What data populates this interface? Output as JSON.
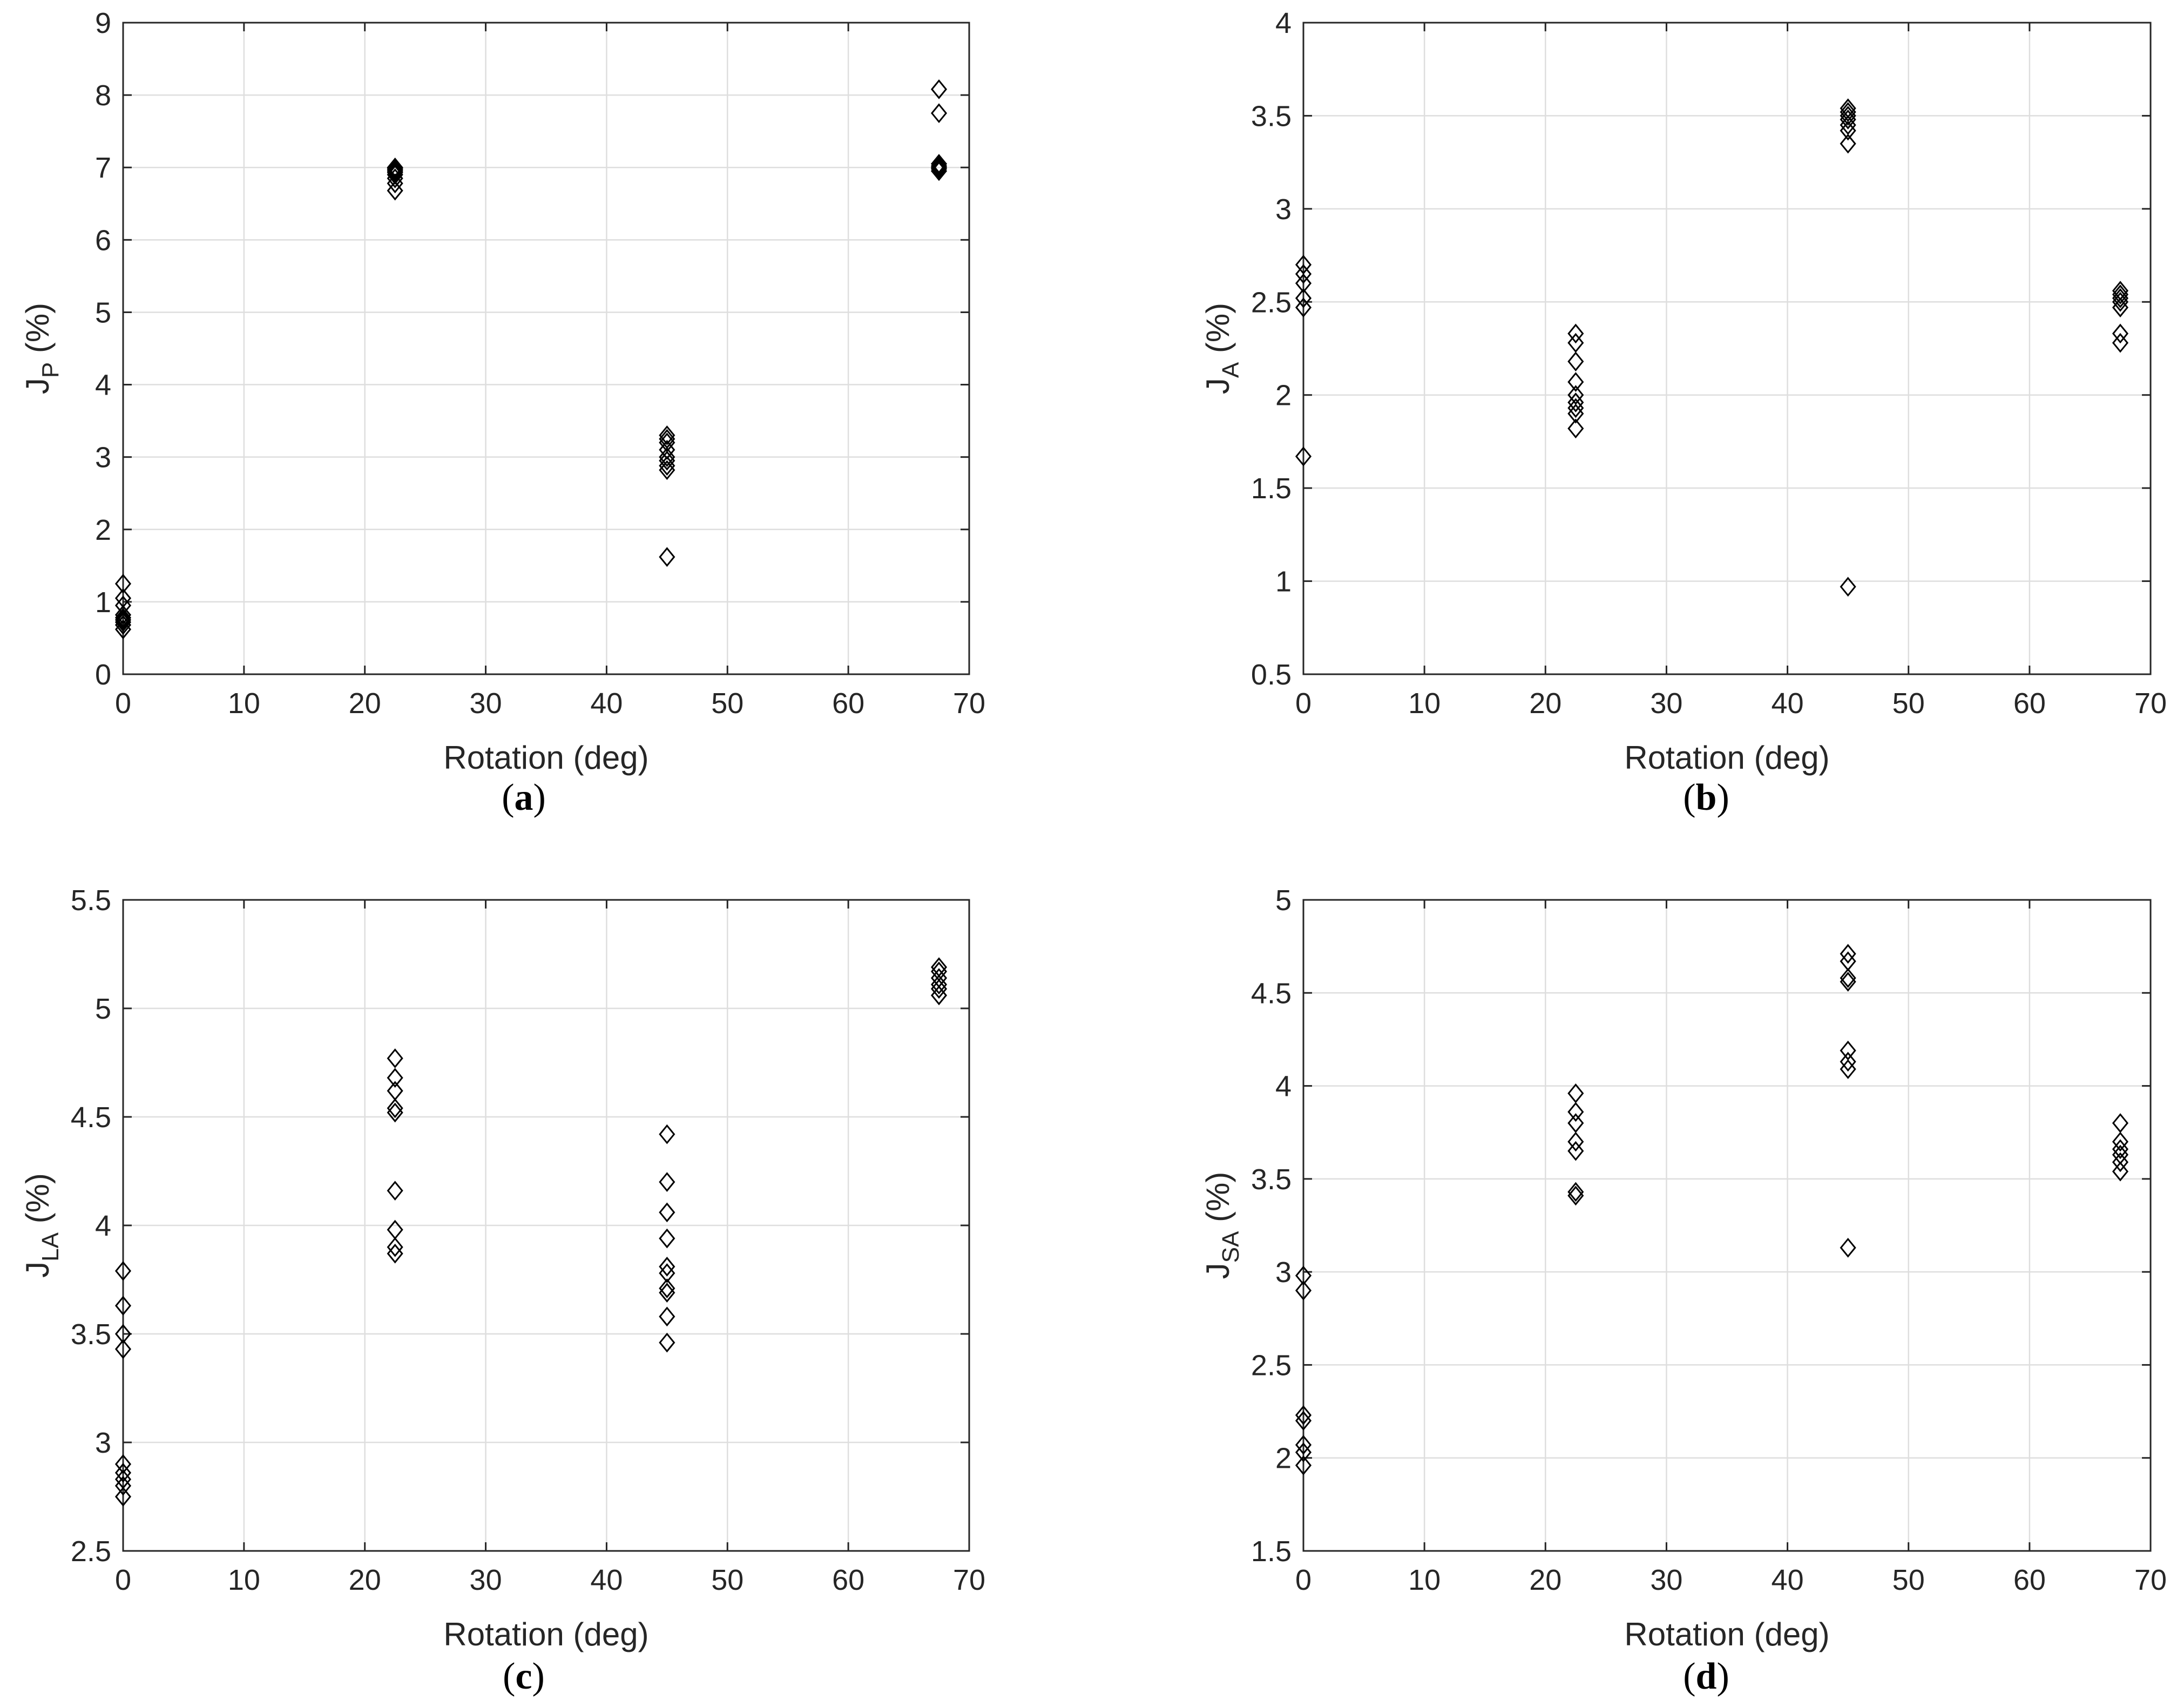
{
  "chart_data": [
    {
      "type": "scatter",
      "panel_label": "a",
      "marker": "diamond",
      "xlabel": "Rotation (deg)",
      "ylabel_main": "J",
      "ylabel_sub": "P",
      "ylabel_unit": "(%)",
      "xlim": [
        0,
        70
      ],
      "ylim": [
        0,
        9
      ],
      "xticks": [
        "0",
        "10",
        "20",
        "30",
        "40",
        "50",
        "60",
        "70"
      ],
      "yticks": [
        "0",
        "1",
        "2",
        "3",
        "4",
        "5",
        "6",
        "7",
        "8",
        "9"
      ],
      "grid": true,
      "series": [
        {
          "x": 0,
          "values": [
            0.62,
            0.68,
            0.72,
            0.75,
            0.78,
            0.82,
            0.95,
            1.05,
            1.25
          ]
        },
        {
          "x": 22.5,
          "values": [
            6.68,
            6.78,
            6.85,
            6.9,
            6.93,
            6.95,
            6.97,
            6.99,
            7.0
          ]
        },
        {
          "x": 45,
          "values": [
            1.62,
            2.82,
            2.88,
            2.95,
            3.0,
            3.1,
            3.2,
            3.25,
            3.3
          ]
        },
        {
          "x": 67.5,
          "values": [
            6.95,
            6.98,
            7.0,
            7.02,
            7.05,
            7.75,
            8.08
          ]
        }
      ]
    },
    {
      "type": "scatter",
      "panel_label": "b",
      "marker": "diamond",
      "xlabel": "Rotation (deg)",
      "ylabel_main": "J",
      "ylabel_sub": "A",
      "ylabel_unit": "(%)",
      "xlim": [
        0,
        70
      ],
      "ylim": [
        0.5,
        4
      ],
      "xticks": [
        "0",
        "10",
        "20",
        "30",
        "40",
        "50",
        "60",
        "70"
      ],
      "yticks": [
        "0.5",
        "1",
        "1.5",
        "2",
        "2.5",
        "3",
        "3.5",
        "4"
      ],
      "grid": true,
      "series": [
        {
          "x": 0,
          "values": [
            1.67,
            2.47,
            2.52,
            2.6,
            2.65,
            2.7
          ]
        },
        {
          "x": 22.5,
          "values": [
            1.82,
            1.9,
            1.93,
            1.96,
            2.0,
            2.07,
            2.18,
            2.28,
            2.33
          ]
        },
        {
          "x": 45,
          "values": [
            0.97,
            3.35,
            3.42,
            3.45,
            3.48,
            3.5,
            3.52,
            3.54
          ]
        },
        {
          "x": 67.5,
          "values": [
            2.28,
            2.33,
            2.47,
            2.5,
            2.52,
            2.54,
            2.56
          ]
        }
      ]
    },
    {
      "type": "scatter",
      "panel_label": "c",
      "marker": "diamond",
      "xlabel": "Rotation (deg)",
      "ylabel_main": "J",
      "ylabel_sub": "LA",
      "ylabel_unit": "(%)",
      "xlim": [
        0,
        70
      ],
      "ylim": [
        2.5,
        5.5
      ],
      "xticks": [
        "0",
        "10",
        "20",
        "30",
        "40",
        "50",
        "60",
        "70"
      ],
      "yticks": [
        "2.5",
        "3",
        "3.5",
        "4",
        "4.5",
        "5",
        "5.5"
      ],
      "grid": true,
      "series": [
        {
          "x": 0,
          "values": [
            2.75,
            2.8,
            2.83,
            2.86,
            2.9,
            3.43,
            3.5,
            3.63,
            3.79
          ]
        },
        {
          "x": 22.5,
          "values": [
            3.87,
            3.9,
            3.98,
            4.16,
            4.52,
            4.54,
            4.62,
            4.68,
            4.77
          ]
        },
        {
          "x": 45,
          "values": [
            3.46,
            3.58,
            3.69,
            3.71,
            3.78,
            3.81,
            3.94,
            4.06,
            4.2,
            4.42
          ]
        },
        {
          "x": 67.5,
          "values": [
            5.06,
            5.09,
            5.11,
            5.14,
            5.17,
            5.19
          ]
        }
      ]
    },
    {
      "type": "scatter",
      "panel_label": "d",
      "marker": "diamond",
      "xlabel": "Rotation (deg)",
      "ylabel_main": "J",
      "ylabel_sub": "SA",
      "ylabel_unit": "(%)",
      "xlim": [
        0,
        70
      ],
      "ylim": [
        1.5,
        5
      ],
      "xticks": [
        "0",
        "10",
        "20",
        "30",
        "40",
        "50",
        "60",
        "70"
      ],
      "yticks": [
        "1.5",
        "2",
        "2.5",
        "3",
        "3.5",
        "4",
        "4.5",
        "5"
      ],
      "grid": true,
      "series": [
        {
          "x": 0,
          "values": [
            1.96,
            2.03,
            2.07,
            2.2,
            2.23,
            2.9,
            2.98
          ]
        },
        {
          "x": 22.5,
          "values": [
            3.41,
            3.43,
            3.65,
            3.7,
            3.8,
            3.86,
            3.96
          ]
        },
        {
          "x": 45,
          "values": [
            3.13,
            4.09,
            4.13,
            4.19,
            4.56,
            4.58,
            4.67,
            4.71
          ]
        },
        {
          "x": 67.5,
          "values": [
            3.54,
            3.59,
            3.63,
            3.66,
            3.7,
            3.8
          ]
        }
      ]
    }
  ]
}
